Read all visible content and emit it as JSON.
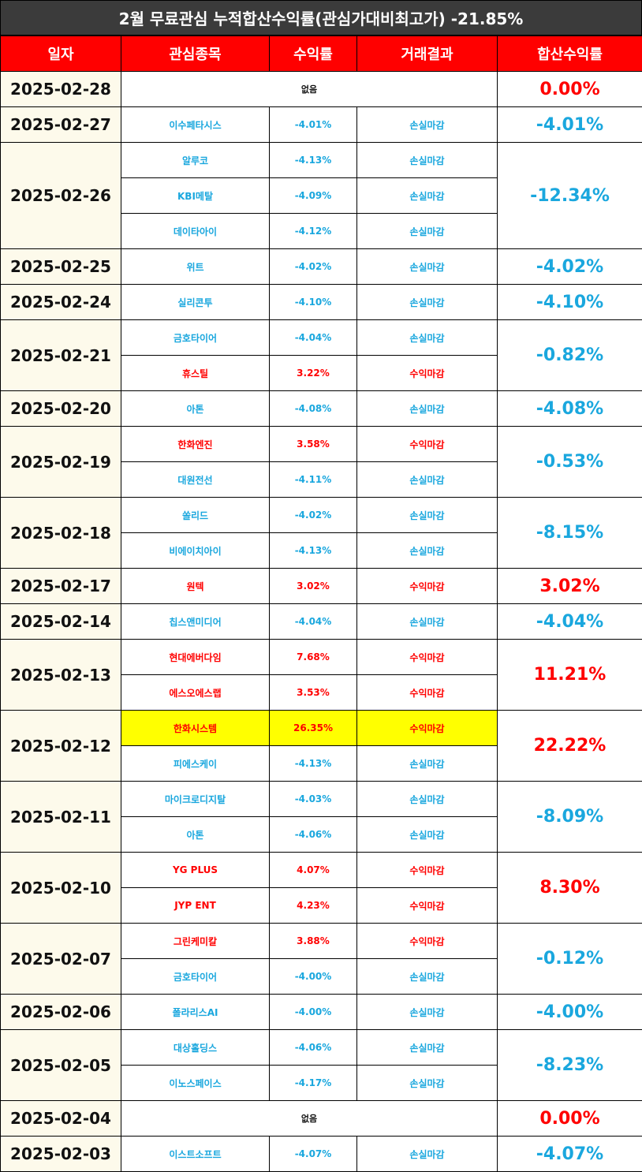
{
  "title": "2월 무료관심 누적합산수익률(관심가대비최고가) -21.85%",
  "headers": [
    "일자",
    "관심종목",
    "수익률",
    "거래결과",
    "합산수익률"
  ],
  "colors": {
    "loss": "#1aa7de",
    "gain": "#ff0000",
    "header": "#ff0000",
    "highlight": "#ffff00"
  },
  "groups": [
    {
      "date": "2025-02-28",
      "total": "0.00%",
      "total_type": "gain",
      "none": "없음",
      "rows": []
    },
    {
      "date": "2025-02-27",
      "total": "-4.01%",
      "total_type": "loss",
      "rows": [
        {
          "name": "이수페타시스",
          "rate": "-4.01%",
          "result": "손실마감",
          "type": "loss"
        }
      ]
    },
    {
      "date": "2025-02-26",
      "total": "-12.34%",
      "total_type": "loss",
      "rows": [
        {
          "name": "알루코",
          "rate": "-4.13%",
          "result": "손실마감",
          "type": "loss"
        },
        {
          "name": "KBI메탈",
          "rate": "-4.09%",
          "result": "손실마감",
          "type": "loss"
        },
        {
          "name": "데이타아이",
          "rate": "-4.12%",
          "result": "손실마감",
          "type": "loss"
        }
      ]
    },
    {
      "date": "2025-02-25",
      "total": "-4.02%",
      "total_type": "loss",
      "rows": [
        {
          "name": "위트",
          "rate": "-4.02%",
          "result": "손실마감",
          "type": "loss"
        }
      ]
    },
    {
      "date": "2025-02-24",
      "total": "-4.10%",
      "total_type": "loss",
      "rows": [
        {
          "name": "실리콘투",
          "rate": "-4.10%",
          "result": "손실마감",
          "type": "loss"
        }
      ]
    },
    {
      "date": "2025-02-21",
      "total": "-0.82%",
      "total_type": "loss",
      "rows": [
        {
          "name": "금호타이어",
          "rate": "-4.04%",
          "result": "손실마감",
          "type": "loss"
        },
        {
          "name": "휴스틸",
          "rate": "3.22%",
          "result": "수익마감",
          "type": "gain"
        }
      ]
    },
    {
      "date": "2025-02-20",
      "total": "-4.08%",
      "total_type": "loss",
      "rows": [
        {
          "name": "아톤",
          "rate": "-4.08%",
          "result": "손실마감",
          "type": "loss"
        }
      ]
    },
    {
      "date": "2025-02-19",
      "total": "-0.53%",
      "total_type": "loss",
      "rows": [
        {
          "name": "한화엔진",
          "rate": "3.58%",
          "result": "수익마감",
          "type": "gain"
        },
        {
          "name": "대원전선",
          "rate": "-4.11%",
          "result": "손실마감",
          "type": "loss"
        }
      ]
    },
    {
      "date": "2025-02-18",
      "total": "-8.15%",
      "total_type": "loss",
      "rows": [
        {
          "name": "쏠리드",
          "rate": "-4.02%",
          "result": "손실마감",
          "type": "loss"
        },
        {
          "name": "비에이치아이",
          "rate": "-4.13%",
          "result": "손실마감",
          "type": "loss"
        }
      ]
    },
    {
      "date": "2025-02-17",
      "total": "3.02%",
      "total_type": "gain",
      "rows": [
        {
          "name": "원텍",
          "rate": "3.02%",
          "result": "수익마감",
          "type": "gain"
        }
      ]
    },
    {
      "date": "2025-02-14",
      "total": "-4.04%",
      "total_type": "loss",
      "rows": [
        {
          "name": "칩스앤미디어",
          "rate": "-4.04%",
          "result": "손실마감",
          "type": "loss"
        }
      ]
    },
    {
      "date": "2025-02-13",
      "total": "11.21%",
      "total_type": "gain",
      "rows": [
        {
          "name": "현대에버다임",
          "rate": "7.68%",
          "result": "수익마감",
          "type": "gain"
        },
        {
          "name": "에스오에스랩",
          "rate": "3.53%",
          "result": "수익마감",
          "type": "gain"
        }
      ]
    },
    {
      "date": "2025-02-12",
      "total": "22.22%",
      "total_type": "gain",
      "rows": [
        {
          "name": "한화시스템",
          "rate": "26.35%",
          "result": "수익마감",
          "type": "gain",
          "highlight": true
        },
        {
          "name": "피에스케이",
          "rate": "-4.13%",
          "result": "손실마감",
          "type": "loss"
        }
      ]
    },
    {
      "date": "2025-02-11",
      "total": "-8.09%",
      "total_type": "loss",
      "rows": [
        {
          "name": "마이크로디지탈",
          "rate": "-4.03%",
          "result": "손실마감",
          "type": "loss"
        },
        {
          "name": "아톤",
          "rate": "-4.06%",
          "result": "손실마감",
          "type": "loss"
        }
      ]
    },
    {
      "date": "2025-02-10",
      "total": "8.30%",
      "total_type": "gain",
      "rows": [
        {
          "name": "YG PLUS",
          "rate": "4.07%",
          "result": "수익마감",
          "type": "gain"
        },
        {
          "name": "JYP ENT",
          "rate": "4.23%",
          "result": "수익마감",
          "type": "gain"
        }
      ]
    },
    {
      "date": "2025-02-07",
      "total": "-0.12%",
      "total_type": "loss",
      "rows": [
        {
          "name": "그린케미칼",
          "rate": "3.88%",
          "result": "수익마감",
          "type": "gain"
        },
        {
          "name": "금호타이어",
          "rate": "-4.00%",
          "result": "손실마감",
          "type": "loss"
        }
      ]
    },
    {
      "date": "2025-02-06",
      "total": "-4.00%",
      "total_type": "loss",
      "rows": [
        {
          "name": "폴라리스AI",
          "rate": "-4.00%",
          "result": "손실마감",
          "type": "loss"
        }
      ]
    },
    {
      "date": "2025-02-05",
      "total": "-8.23%",
      "total_type": "loss",
      "rows": [
        {
          "name": "대상홀딩스",
          "rate": "-4.06%",
          "result": "손실마감",
          "type": "loss"
        },
        {
          "name": "이노스페이스",
          "rate": "-4.17%",
          "result": "손실마감",
          "type": "loss"
        }
      ]
    },
    {
      "date": "2025-02-04",
      "total": "0.00%",
      "total_type": "gain",
      "none": "없음",
      "rows": []
    },
    {
      "date": "2025-02-03",
      "total": "-4.07%",
      "total_type": "loss",
      "rows": [
        {
          "name": "이스트소프트",
          "rate": "-4.07%",
          "result": "손실마감",
          "type": "loss"
        }
      ]
    }
  ]
}
